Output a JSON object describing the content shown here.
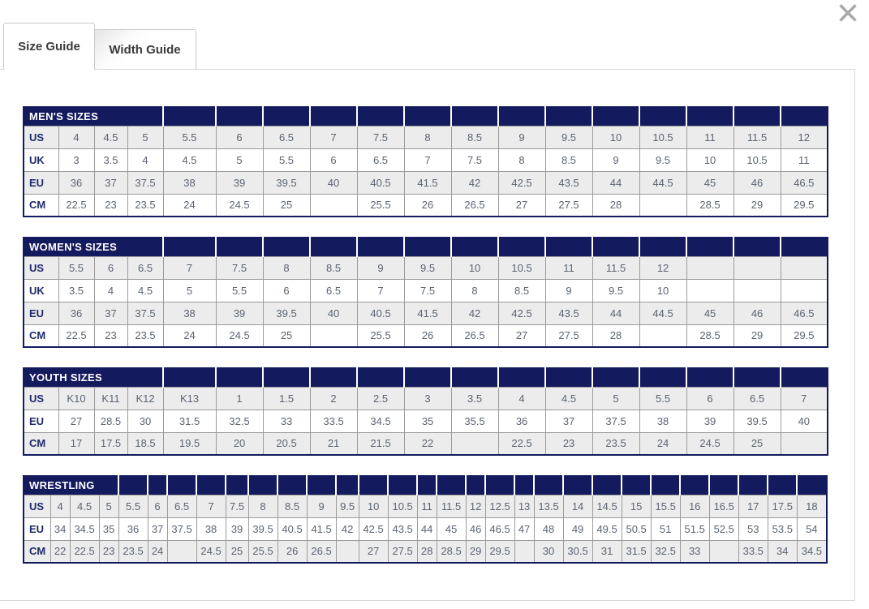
{
  "modal": {
    "close_icon": "×",
    "tabs": [
      {
        "label": "Size Guide",
        "active": true
      },
      {
        "label": "Width Guide",
        "active": false
      }
    ]
  },
  "colors": {
    "header_navy": "#141a5e",
    "row_stripe_gray": "#ececec",
    "cell_text": "#5b6472",
    "row_label_text": "#1f2a6b",
    "inner_border": "#9b9b9b",
    "tab_border": "#c9c9c9",
    "panel_border": "#d8d8d8",
    "close_icon_gray": "#a8a8a8"
  },
  "tables": [
    {
      "title": "MEN'S SIZES",
      "rows": [
        {
          "label": "US",
          "values": [
            "4",
            "4.5",
            "5",
            "5.5",
            "6",
            "6.5",
            "7",
            "7.5",
            "8",
            "8.5",
            "9",
            "9.5",
            "10",
            "10.5",
            "11",
            "11.5",
            "12"
          ]
        },
        {
          "label": "UK",
          "values": [
            "3",
            "3.5",
            "4",
            "4.5",
            "5",
            "5.5",
            "6",
            "6.5",
            "7",
            "7.5",
            "8",
            "8.5",
            "9",
            "9.5",
            "10",
            "10.5",
            "11"
          ]
        },
        {
          "label": "EU",
          "values": [
            "36",
            "37",
            "37.5",
            "38",
            "39",
            "39.5",
            "40",
            "40.5",
            "41.5",
            "42",
            "42.5",
            "43.5",
            "44",
            "44.5",
            "45",
            "46",
            "46.5"
          ]
        },
        {
          "label": "CM",
          "values": [
            "22.5",
            "23",
            "23.5",
            "24",
            "24.5",
            "25",
            "",
            "25.5",
            "26",
            "26.5",
            "27",
            "27.5",
            "28",
            "",
            "28.5",
            "29",
            "29.5"
          ]
        }
      ]
    },
    {
      "title": "WOMEN'S SIZES",
      "rows": [
        {
          "label": "US",
          "values": [
            "5.5",
            "6",
            "6.5",
            "7",
            "7.5",
            "8",
            "8.5",
            "9",
            "9.5",
            "10",
            "10.5",
            "11",
            "11.5",
            "12",
            "",
            "",
            ""
          ]
        },
        {
          "label": "UK",
          "values": [
            "3.5",
            "4",
            "4.5",
            "5",
            "5.5",
            "6",
            "6.5",
            "7",
            "7.5",
            "8",
            "8.5",
            "9",
            "9.5",
            "10",
            "",
            "",
            ""
          ]
        },
        {
          "label": "EU",
          "values": [
            "36",
            "37",
            "37.5",
            "38",
            "39",
            "39.5",
            "40",
            "40.5",
            "41.5",
            "42",
            "42.5",
            "43.5",
            "44",
            "44.5",
            "45",
            "46",
            "46.5"
          ]
        },
        {
          "label": "CM",
          "values": [
            "22.5",
            "23",
            "23.5",
            "24",
            "24.5",
            "25",
            "",
            "25.5",
            "26",
            "26.5",
            "27",
            "27.5",
            "28",
            "",
            "28.5",
            "29",
            "29.5"
          ]
        }
      ]
    },
    {
      "title": "YOUTH SIZES",
      "rows": [
        {
          "label": "US",
          "values": [
            "K10",
            "K11",
            "K12",
            "K13",
            "1",
            "1.5",
            "2",
            "2.5",
            "3",
            "3.5",
            "4",
            "4.5",
            "5",
            "5.5",
            "6",
            "6.5",
            "7"
          ]
        },
        {
          "label": "EU",
          "values": [
            "27",
            "28.5",
            "30",
            "31.5",
            "32.5",
            "33",
            "33.5",
            "34.5",
            "35",
            "35.5",
            "36",
            "37",
            "37.5",
            "38",
            "39",
            "39.5",
            "40"
          ]
        },
        {
          "label": "CM",
          "values": [
            "17",
            "17.5",
            "18.5",
            "19.5",
            "20",
            "20.5",
            "21",
            "21.5",
            "22",
            "",
            "22.5",
            "23",
            "23.5",
            "24",
            "24.5",
            "25",
            ""
          ]
        }
      ]
    },
    {
      "title": "WRESTLING",
      "compact": true,
      "rows": [
        {
          "label": "US",
          "values": [
            "4",
            "4.5",
            "5",
            "5.5",
            "6",
            "6.5",
            "7",
            "7.5",
            "8",
            "8.5",
            "9",
            "9.5",
            "10",
            "10.5",
            "11",
            "11.5",
            "12",
            "12.5",
            "13",
            "13.5",
            "14",
            "14.5",
            "15",
            "15.5",
            "16",
            "16.5",
            "17",
            "17.5",
            "18"
          ]
        },
        {
          "label": "EU",
          "values": [
            "34",
            "34.5",
            "35",
            "36",
            "37",
            "37.5",
            "38",
            "39",
            "39.5",
            "40.5",
            "41.5",
            "42",
            "42.5",
            "43.5",
            "44",
            "45",
            "46",
            "46.5",
            "47",
            "48",
            "49",
            "49.5",
            "50.5",
            "51",
            "51.5",
            "52.5",
            "53",
            "53.5",
            "54"
          ]
        },
        {
          "label": "CM",
          "values": [
            "22",
            "22.5",
            "23",
            "23.5",
            "24",
            "",
            "24.5",
            "25",
            "25.5",
            "26",
            "26.5",
            "",
            "27",
            "27.5",
            "28",
            "28.5",
            "29",
            "29.5",
            "",
            "30",
            "30.5",
            "31",
            "31.5",
            "32.5",
            "33",
            "",
            "33.5",
            "34",
            "34.5"
          ]
        }
      ]
    }
  ]
}
